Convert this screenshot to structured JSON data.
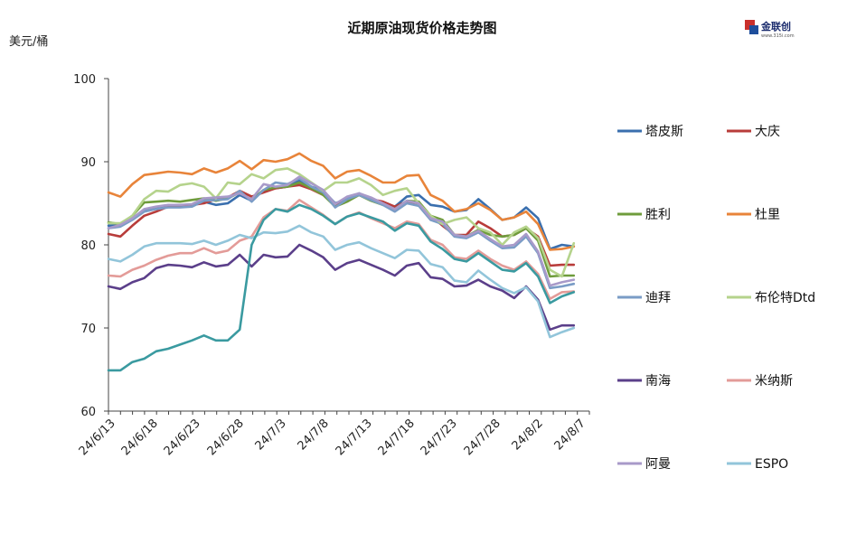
{
  "header": {
    "title": "近期原油现货价格走势图",
    "unit": "美元/桶",
    "logo_text": "金联创",
    "logo_sub": "www.315i.com"
  },
  "chart_data": {
    "type": "line",
    "title": "近期原油现货价格走势图",
    "ylabel": "美元/桶",
    "xlabel": "",
    "ylim": [
      60,
      100
    ],
    "yticks": [
      60,
      70,
      80,
      90,
      100
    ],
    "grid": false,
    "legend_position": "right",
    "xtick_labels": [
      "24/6/13",
      "24/6/18",
      "24/6/23",
      "24/6/28",
      "24/7/3",
      "24/7/8",
      "24/7/13",
      "24/7/18",
      "24/7/23",
      "24/7/28",
      "24/8/2",
      "24/8/7"
    ],
    "x": [
      "24/6/13",
      "24/6/14",
      "24/6/17",
      "24/6/18",
      "24/6/19",
      "24/6/20",
      "24/6/21",
      "24/6/24",
      "24/6/25",
      "24/6/26",
      "24/6/27",
      "24/6/28",
      "24/7/1",
      "24/7/2",
      "24/7/3",
      "24/7/4",
      "24/7/5",
      "24/7/8",
      "24/7/9",
      "24/7/10",
      "24/7/11",
      "24/7/12",
      "24/7/15",
      "24/7/16",
      "24/7/17",
      "24/7/18",
      "24/7/19",
      "24/7/22",
      "24/7/23",
      "24/7/24",
      "24/7/25",
      "24/7/26",
      "24/7/29",
      "24/7/30",
      "24/7/31",
      "24/8/1",
      "24/8/2",
      "24/8/5",
      "24/8/6",
      "24/8/7"
    ],
    "series": [
      {
        "name": "塔皮斯",
        "color": "#3a6fae",
        "values": [
          82.3,
          82.4,
          83.2,
          84.2,
          84.5,
          84.6,
          84.6,
          84.8,
          85.2,
          84.8,
          85.0,
          86.0,
          85.3,
          86.6,
          86.8,
          87.0,
          87.8,
          87.0,
          86.5,
          85.0,
          85.5,
          86.2,
          85.6,
          85.0,
          84.6,
          85.8,
          86.0,
          84.8,
          84.6,
          84.0,
          84.2,
          85.5,
          84.3,
          83.0,
          83.3,
          84.5,
          83.2,
          79.5,
          80.0,
          79.8
        ]
      },
      {
        "name": "大庆",
        "color": "#b83c3a",
        "values": [
          81.3,
          81.0,
          82.3,
          83.5,
          84.0,
          84.6,
          84.7,
          84.8,
          85.0,
          85.5,
          85.7,
          86.5,
          85.8,
          86.3,
          86.8,
          87.0,
          87.2,
          86.7,
          86.0,
          84.8,
          85.3,
          86.0,
          85.5,
          85.2,
          84.6,
          85.2,
          85.0,
          83.5,
          82.3,
          81.2,
          81.2,
          82.8,
          82.0,
          81.0,
          81.2,
          82.0,
          81.0,
          77.5,
          77.6,
          77.6
        ]
      },
      {
        "name": "胜利",
        "color": "#6f9c3c",
        "values": [
          82.7,
          82.5,
          83.5,
          85.1,
          85.2,
          85.3,
          85.2,
          85.4,
          85.6,
          85.3,
          85.6,
          86.3,
          85.4,
          86.6,
          86.9,
          87.0,
          87.5,
          86.8,
          86.0,
          84.6,
          85.2,
          86.0,
          85.3,
          84.8,
          84.3,
          85.3,
          85.2,
          83.5,
          83.0,
          81.2,
          81.0,
          81.8,
          81.2,
          81.0,
          81.2,
          82.0,
          80.5,
          76.2,
          76.3,
          76.3
        ]
      },
      {
        "name": "杜里",
        "color": "#e8843a",
        "values": [
          86.3,
          85.8,
          87.3,
          88.4,
          88.6,
          88.8,
          88.7,
          88.5,
          89.2,
          88.7,
          89.2,
          90.1,
          89.1,
          90.2,
          90.0,
          90.3,
          91.0,
          90.1,
          89.5,
          88.0,
          88.8,
          89.0,
          88.3,
          87.5,
          87.5,
          88.3,
          88.4,
          86.0,
          85.3,
          84.0,
          84.3,
          85.0,
          84.2,
          83.0,
          83.3,
          84.0,
          82.5,
          79.4,
          79.5,
          79.8
        ]
      },
      {
        "name": "迪拜",
        "color": "#7a9cc6",
        "values": [
          82.0,
          82.2,
          83.0,
          84.0,
          84.3,
          84.5,
          84.5,
          84.6,
          85.3,
          85.4,
          85.5,
          86.5,
          85.2,
          86.6,
          87.5,
          87.3,
          88.0,
          87.0,
          86.3,
          84.5,
          85.5,
          86.0,
          85.4,
          84.8,
          84.0,
          85.0,
          84.7,
          83.0,
          82.5,
          81.0,
          80.8,
          81.5,
          80.5,
          79.6,
          79.7,
          81.0,
          79.0,
          74.8,
          75.0,
          75.3
        ]
      },
      {
        "name": "布伦特Dtd",
        "color": "#b5d38c",
        "values": [
          82.6,
          82.6,
          83.5,
          85.5,
          86.5,
          86.4,
          87.2,
          87.4,
          87.0,
          85.6,
          87.5,
          87.3,
          88.5,
          88.0,
          89.0,
          89.2,
          88.5,
          87.5,
          86.5,
          87.5,
          87.5,
          88.0,
          87.2,
          86.0,
          86.5,
          86.8,
          85.0,
          83.5,
          82.5,
          83.0,
          83.3,
          82.0,
          81.5,
          80.0,
          81.5,
          82.2,
          80.8,
          77.0,
          76.2,
          80.2
        ]
      },
      {
        "name": "南海",
        "color": "#5b3f8a",
        "values": [
          75.0,
          74.7,
          75.5,
          76.0,
          77.2,
          77.6,
          77.5,
          77.3,
          77.9,
          77.4,
          77.6,
          78.8,
          77.4,
          78.8,
          78.5,
          78.6,
          80.0,
          79.3,
          78.5,
          77.0,
          77.8,
          78.2,
          77.6,
          77.0,
          76.3,
          77.5,
          77.8,
          76.1,
          75.9,
          75.0,
          75.1,
          75.8,
          75.0,
          74.5,
          73.6,
          75.0,
          73.4,
          69.8,
          70.3,
          70.3
        ]
      },
      {
        "name": "米纳斯",
        "color": "#e39b98",
        "values": [
          76.3,
          76.2,
          77.0,
          77.5,
          78.2,
          78.7,
          79.0,
          79.0,
          79.6,
          79.0,
          79.3,
          80.5,
          81.0,
          83.3,
          84.3,
          84.1,
          85.4,
          84.5,
          83.6,
          82.5,
          83.4,
          83.9,
          83.2,
          82.6,
          82.0,
          82.8,
          82.5,
          80.6,
          80.0,
          78.5,
          78.3,
          79.3,
          78.3,
          77.5,
          77.0,
          78.0,
          76.5,
          73.5,
          74.3,
          74.4
        ]
      },
      {
        "name": "阿曼",
        "color": "#a89ac9",
        "values": [
          82.0,
          82.4,
          83.2,
          84.3,
          84.6,
          84.8,
          84.8,
          84.9,
          85.6,
          85.7,
          85.8,
          86.2,
          85.5,
          87.3,
          87.0,
          87.2,
          88.2,
          87.4,
          86.6,
          84.9,
          85.8,
          86.2,
          85.7,
          85.0,
          84.3,
          85.3,
          85.0,
          83.2,
          82.8,
          81.2,
          81.0,
          81.7,
          80.7,
          79.8,
          80.0,
          81.3,
          79.2,
          75.1,
          75.5,
          75.8
        ]
      },
      {
        "name": "ESPO",
        "color": "#92c5da",
        "values": [
          78.3,
          78.0,
          78.8,
          79.8,
          80.2,
          80.2,
          80.2,
          80.1,
          80.5,
          80.0,
          80.5,
          81.2,
          80.8,
          81.5,
          81.4,
          81.6,
          82.3,
          81.5,
          81.0,
          79.4,
          80.0,
          80.3,
          79.6,
          79.0,
          78.4,
          79.4,
          79.3,
          77.7,
          77.3,
          75.7,
          75.5,
          76.9,
          75.8,
          74.8,
          74.2,
          74.9,
          73.2,
          68.9,
          69.5,
          70.0
        ]
      }
    ],
    "overlay_series": {
      "color": "#3a9aa0",
      "values": [
        64.9,
        64.9,
        65.9,
        66.3,
        67.2,
        67.5,
        68.0,
        68.5,
        69.1,
        68.5,
        68.5,
        69.8,
        80.0,
        83.0,
        84.3,
        84.0,
        84.8,
        84.3,
        83.5,
        82.5,
        83.4,
        83.8,
        83.3,
        82.8,
        81.7,
        82.6,
        82.3,
        80.4,
        79.5,
        78.3,
        78.0,
        79.0,
        78.0,
        77.0,
        76.8,
        77.8,
        76.2,
        73.0,
        73.8,
        74.3
      ]
    }
  }
}
